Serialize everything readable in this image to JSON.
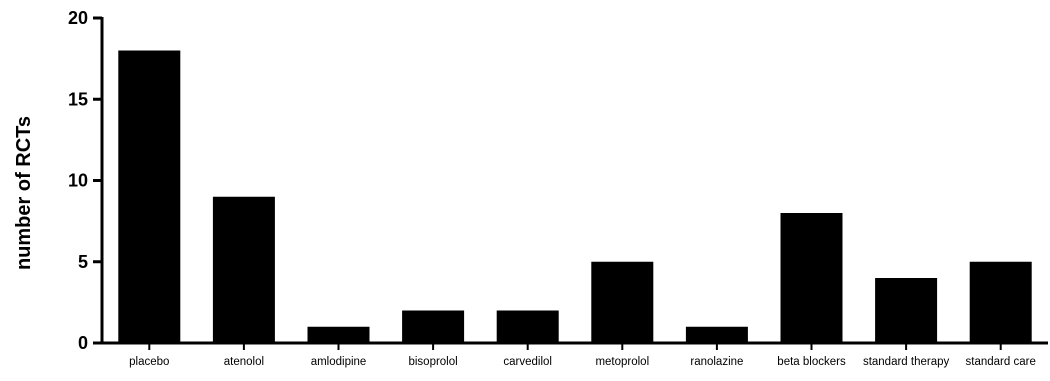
{
  "chart_data": {
    "type": "bar",
    "categories": [
      "placebo",
      "atenolol",
      "amlodipine",
      "bisoprolol",
      "carvedilol",
      "metoprolol",
      "ranolazine",
      "beta blockers",
      "standard therapy",
      "standard care"
    ],
    "values": [
      18,
      9,
      1,
      2,
      2,
      5,
      1,
      8,
      4,
      5
    ],
    "title": "",
    "xlabel": "",
    "ylabel": "number of RCTs",
    "ylim": [
      0,
      20
    ],
    "yticks": [
      0,
      5,
      10,
      15,
      20
    ],
    "grid": false,
    "bar_color": "#000000"
  }
}
